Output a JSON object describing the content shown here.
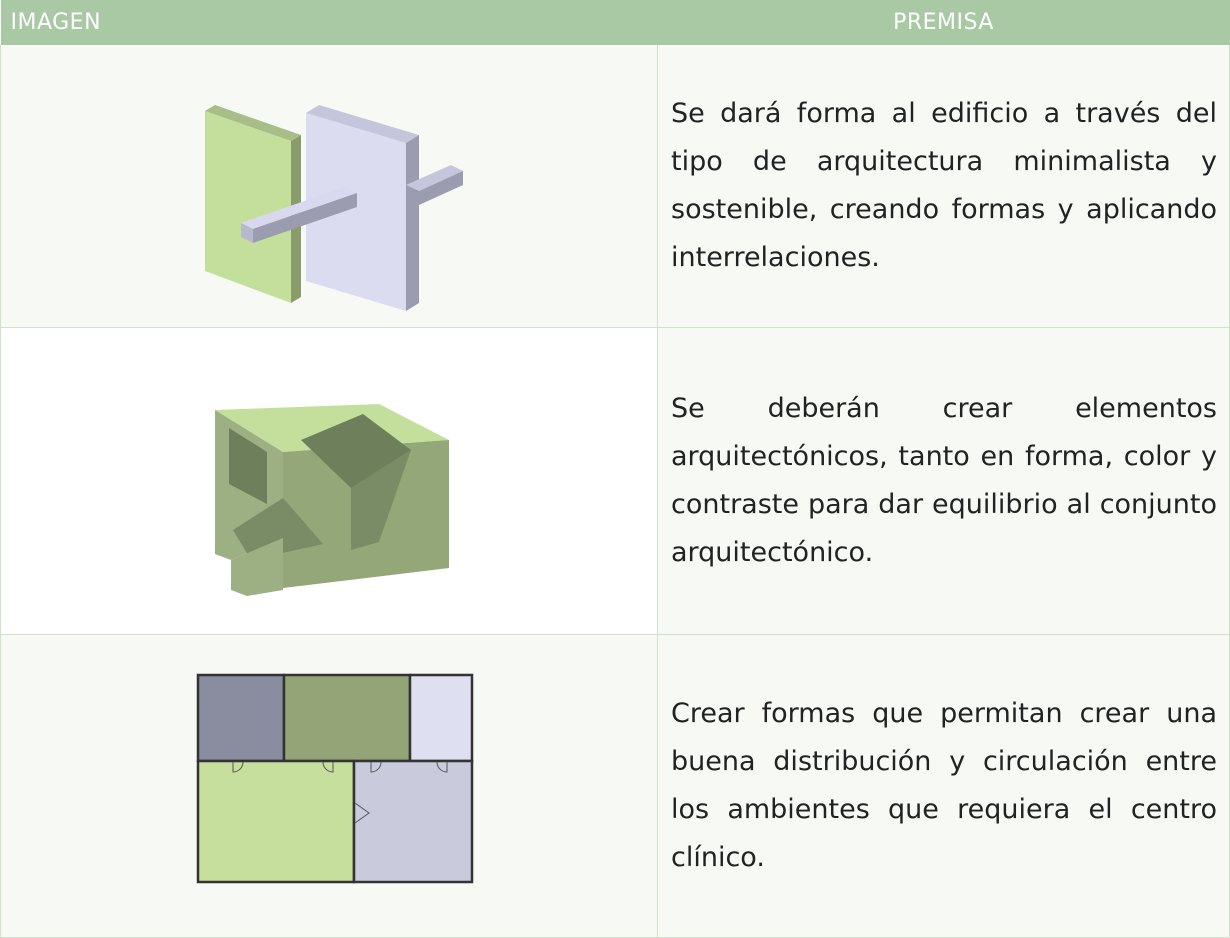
{
  "header": {
    "columns": [
      "IMAGEN",
      "PREMISA"
    ]
  },
  "rows": [
    {
      "premisa": "Se dará forma al edificio a través del tipo de arquitectura minimalista y sostenible, creando formas y aplicando interrelaciones."
    },
    {
      "premisa": "Se deberán crear elementos arquitectónicos, tanto en forma, color y contraste para dar equilibrio al conjunto arquitectónico."
    },
    {
      "premisa": "Crear formas que permitan crear una buena distribución y circulación entre los ambientes que requiera el centro clínico."
    }
  ]
}
